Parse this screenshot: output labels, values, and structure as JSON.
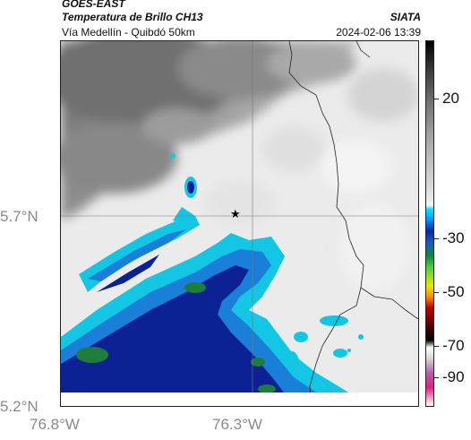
{
  "header": {
    "satellite": "GOES-EAST",
    "product": "Temperatura de Brillo CH13",
    "route": "Vía Medellín - Quibdó 50km",
    "org": "SIATA",
    "datetime": "2024-02-06 13:39"
  },
  "axes": {
    "lat_labels": [
      "5.7°N",
      "5.2°N"
    ],
    "lon_labels": [
      "76.8°W",
      "76.3°W"
    ]
  },
  "colorbar": {
    "labels": [
      "20",
      "-30",
      "-50",
      "-70",
      "-90"
    ]
  },
  "map": {
    "marker_icon": "star-icon",
    "colors": {
      "cold_dark_blue": "#0a1d8c",
      "cyan": "#10c8e6",
      "green": "#1e7a3c",
      "gray_cloud": "#6e6e6e",
      "clear": "#efefef"
    }
  }
}
